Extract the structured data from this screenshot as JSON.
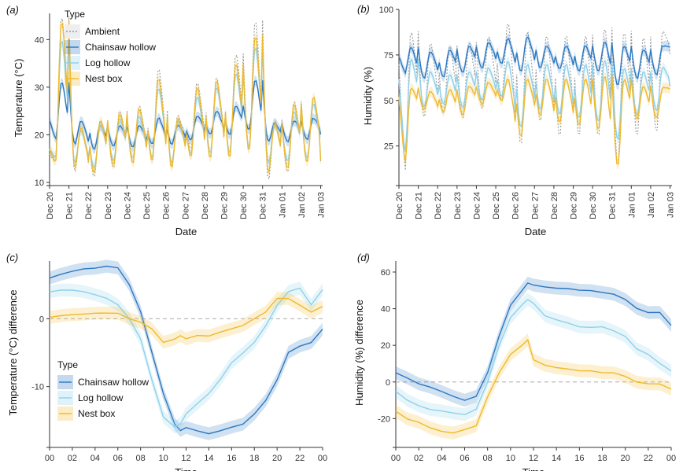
{
  "colors": {
    "ambient": "#9a9a9a",
    "chainsaw_hollow": "#2b78c2",
    "log_hollow": "#8fd0ea",
    "nest_box": "#f0b92c",
    "zero_line": "#bbbbbb"
  },
  "chart_data": [
    {
      "panel": "(a)",
      "type": "line",
      "xlabel": "Date",
      "ylabel": "Temperature (°C)",
      "x_ticks": [
        "Dec 20",
        "Dec 21",
        "Dec 22",
        "Dec 23",
        "Dec 24",
        "Dec 25",
        "Dec 26",
        "Dec 27",
        "Dec 28",
        "Dec 29",
        "Dec 30",
        "Dec 31",
        "Jan 01",
        "Jan 02",
        "Jan 03"
      ],
      "y_ticks": [
        "10",
        "20",
        "30",
        "40"
      ],
      "ylim": [
        10,
        45.5
      ],
      "legend": {
        "title": "Type",
        "placement": "top-left",
        "items": [
          "Ambient",
          "Chainsaw hollow",
          "Log hollow",
          "Nest box"
        ]
      },
      "series": [
        {
          "name": "Ambient",
          "min": [
            14,
            12,
            11,
            13,
            14,
            15,
            13,
            17,
            16,
            15,
            17,
            10.5,
            12,
            14
          ],
          "max": [
            45,
            22,
            23,
            25,
            26,
            34,
            24,
            31,
            32,
            37,
            44,
            23,
            27,
            28
          ],
          "start": 16,
          "end": 14
        },
        {
          "name": "Chainsaw hollow",
          "min": [
            19,
            18,
            17,
            17.5,
            17.5,
            18,
            18,
            19,
            20,
            20,
            21,
            18.5,
            18.5,
            19
          ],
          "max": [
            31,
            23,
            22,
            22,
            22,
            23.5,
            22,
            24,
            25,
            26,
            31.5,
            22.5,
            23,
            23.5
          ],
          "start": 23,
          "end": 20
        },
        {
          "name": "Log hollow",
          "min": [
            15,
            14,
            13,
            14.5,
            15,
            15,
            14,
            16,
            16,
            16,
            17,
            14,
            14.5,
            15
          ],
          "max": [
            40,
            21,
            22,
            23.5,
            24,
            30,
            23,
            28,
            30,
            33,
            38.5,
            22,
            25,
            26.5
          ],
          "start": 17,
          "end": 15
        },
        {
          "name": "Nest box",
          "min": [
            14,
            13,
            12,
            13.5,
            14,
            14.5,
            13,
            15.5,
            15,
            15,
            16.5,
            12,
            13,
            14
          ],
          "max": [
            44,
            21.5,
            23,
            24.5,
            25.5,
            32,
            23.5,
            30,
            31.5,
            35,
            41,
            22.5,
            26.5,
            28
          ],
          "start": 17,
          "end": 14.5
        }
      ]
    },
    {
      "panel": "(b)",
      "type": "line",
      "xlabel": "Date",
      "ylabel": "Humidity (%)",
      "x_ticks": [
        "Dec 20",
        "Dec 21",
        "Dec 22",
        "Dec 23",
        "Dec 24",
        "Dec 25",
        "Dec 26",
        "Dec 27",
        "Dec 28",
        "Dec 29",
        "Dec 30",
        "Dec 31",
        "Jan 01",
        "Jan 02",
        "Jan 03"
      ],
      "y_ticks": [
        "25",
        "50",
        "75",
        "100"
      ],
      "ylim": [
        5,
        100
      ],
      "series": [
        {
          "name": "Ambient",
          "min": [
            10,
            40,
            42,
            40,
            45,
            50,
            25,
            38,
            30,
            30,
            30,
            15,
            30,
            32
          ],
          "max": [
            88,
            82,
            80,
            82,
            85,
            93,
            88,
            86,
            86,
            86,
            90,
            88,
            85,
            88
          ],
          "start": 70,
          "end": 75
        },
        {
          "name": "Chainsaw hollow",
          "min": [
            65,
            62,
            63,
            65,
            68,
            70,
            66,
            68,
            67,
            66,
            66,
            58,
            62,
            64
          ],
          "max": [
            79,
            77,
            78,
            80,
            82,
            84,
            85,
            80,
            80,
            80,
            82,
            80,
            78,
            80
          ],
          "start": 74,
          "end": 79
        },
        {
          "name": "Log hollow",
          "min": [
            20,
            46,
            48,
            46,
            50,
            52,
            35,
            45,
            42,
            40,
            38,
            28,
            42,
            44
          ],
          "max": [
            73,
            66,
            64,
            66,
            68,
            72,
            70,
            70,
            70,
            70,
            72,
            68,
            66,
            68
          ],
          "start": 62,
          "end": 58
        },
        {
          "name": "Nest box",
          "min": [
            15,
            45,
            44,
            42,
            48,
            50,
            30,
            42,
            38,
            36,
            34,
            14,
            40,
            40
          ],
          "max": [
            57,
            55,
            56,
            58,
            60,
            62,
            62,
            62,
            62,
            62,
            64,
            62,
            58,
            57
          ],
          "start": 52,
          "end": 56
        }
      ]
    },
    {
      "panel": "(c)",
      "type": "line",
      "xlabel": "Time",
      "ylabel": "Temperature (°C) difference",
      "x": [
        0,
        1,
        2,
        3,
        4,
        5,
        6,
        7,
        8,
        9,
        10,
        11,
        11.5,
        12,
        13,
        14,
        15,
        16,
        17,
        18,
        19,
        20,
        21,
        22,
        23,
        24
      ],
      "x_ticks": [
        "00",
        "02",
        "04",
        "06",
        "08",
        "10",
        "12",
        "14",
        "16",
        "18",
        "20",
        "22",
        "00"
      ],
      "y_ticks": [
        "-10",
        "0"
      ],
      "ylim": [
        -18.5,
        8.5
      ],
      "legend": {
        "title": "Type",
        "placement": "bottom-left",
        "items": [
          "Chainsaw hollow",
          "Log hollow",
          "Nest box"
        ]
      },
      "series": [
        {
          "name": "Chainsaw hollow",
          "values": [
            6,
            6.5,
            7,
            7.3,
            7.5,
            7.7,
            7.5,
            5,
            1,
            -5,
            -11,
            -15.5,
            -16.5,
            -16,
            -16.5,
            -17,
            -16.5,
            -16,
            -15.5,
            -14,
            -12,
            -9,
            -5,
            -4,
            -3.5,
            -1.5
          ]
        },
        {
          "name": "Log hollow",
          "values": [
            4,
            4.2,
            4.2,
            4,
            3.5,
            3,
            2,
            0,
            -3,
            -9,
            -14.5,
            -16,
            -15.5,
            -14,
            -12.5,
            -11,
            -9,
            -6.5,
            -5,
            -3.5,
            -1,
            2,
            4,
            4.5,
            2,
            4.3
          ]
        },
        {
          "name": "Nest box",
          "values": [
            0.2,
            0.5,
            0.6,
            0.7,
            0.8,
            0.8,
            0.8,
            0,
            -0.5,
            -1.5,
            -3.5,
            -3,
            -2.5,
            -3,
            -2.5,
            -2.5,
            -2,
            -1.5,
            -1,
            0,
            1,
            3,
            3,
            2,
            1,
            1.8
          ]
        }
      ]
    },
    {
      "panel": "(d)",
      "type": "line",
      "xlabel": "Time",
      "ylabel": "Humidity (%) difference",
      "x": [
        0,
        1,
        2,
        3,
        4,
        5,
        6,
        7,
        8,
        9,
        10,
        11,
        11.5,
        12,
        13,
        14,
        15,
        16,
        17,
        18,
        19,
        20,
        21,
        22,
        23,
        24
      ],
      "x_ticks": [
        "00",
        "02",
        "04",
        "06",
        "08",
        "10",
        "12",
        "14",
        "16",
        "18",
        "20",
        "22",
        "00"
      ],
      "y_ticks": [
        "-20",
        "0",
        "20",
        "40",
        "60"
      ],
      "ylim": [
        -34,
        66
      ],
      "series": [
        {
          "name": "Chainsaw hollow",
          "values": [
            5,
            2,
            -1,
            -3,
            -5,
            -8,
            -10,
            -8,
            5,
            25,
            42,
            50,
            54,
            53,
            52,
            51,
            51,
            50,
            50,
            49,
            48,
            45,
            40,
            38,
            38,
            31
          ]
        },
        {
          "name": "Log hollow",
          "values": [
            -5,
            -10,
            -13,
            -15,
            -16,
            -17,
            -18,
            -15,
            0,
            20,
            35,
            42,
            45,
            43,
            36,
            34,
            32,
            30,
            30,
            30,
            28,
            25,
            18,
            15,
            10,
            6
          ]
        },
        {
          "name": "Nest box",
          "values": [
            -16,
            -20,
            -22,
            -25,
            -27,
            -28,
            -26,
            -24,
            -8,
            5,
            15,
            20,
            23,
            12,
            9,
            8,
            7,
            6,
            6,
            5,
            5,
            3,
            0,
            -1,
            -1,
            -4
          ]
        }
      ]
    }
  ]
}
